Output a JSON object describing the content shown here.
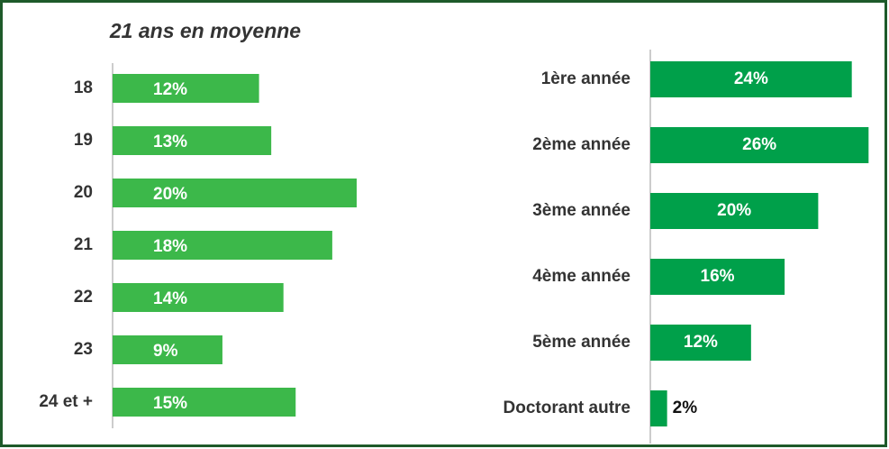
{
  "chart_data": [
    {
      "type": "bar",
      "orientation": "horizontal",
      "title": "21 ans en moyenne",
      "categories": [
        "18",
        "19",
        "20",
        "21",
        "22",
        "23",
        "24 et +"
      ],
      "values": [
        12,
        13,
        20,
        18,
        14,
        9,
        15
      ],
      "value_labels": [
        "12%",
        "13%",
        "20%",
        "18%",
        "14%",
        "9%",
        "15%"
      ],
      "color": "#3cb84a",
      "xlim": [
        0,
        20
      ]
    },
    {
      "type": "bar",
      "orientation": "horizontal",
      "categories": [
        "1ère année",
        "2ème année",
        "3ème année",
        "4ème année",
        "5ème année",
        "Doctorant autre"
      ],
      "values": [
        24,
        26,
        20,
        16,
        12,
        2
      ],
      "value_labels": [
        "24%",
        "26%",
        "20%",
        "16%",
        "12%",
        "2%"
      ],
      "color": "#00a04a",
      "xlim": [
        0,
        25
      ]
    }
  ]
}
